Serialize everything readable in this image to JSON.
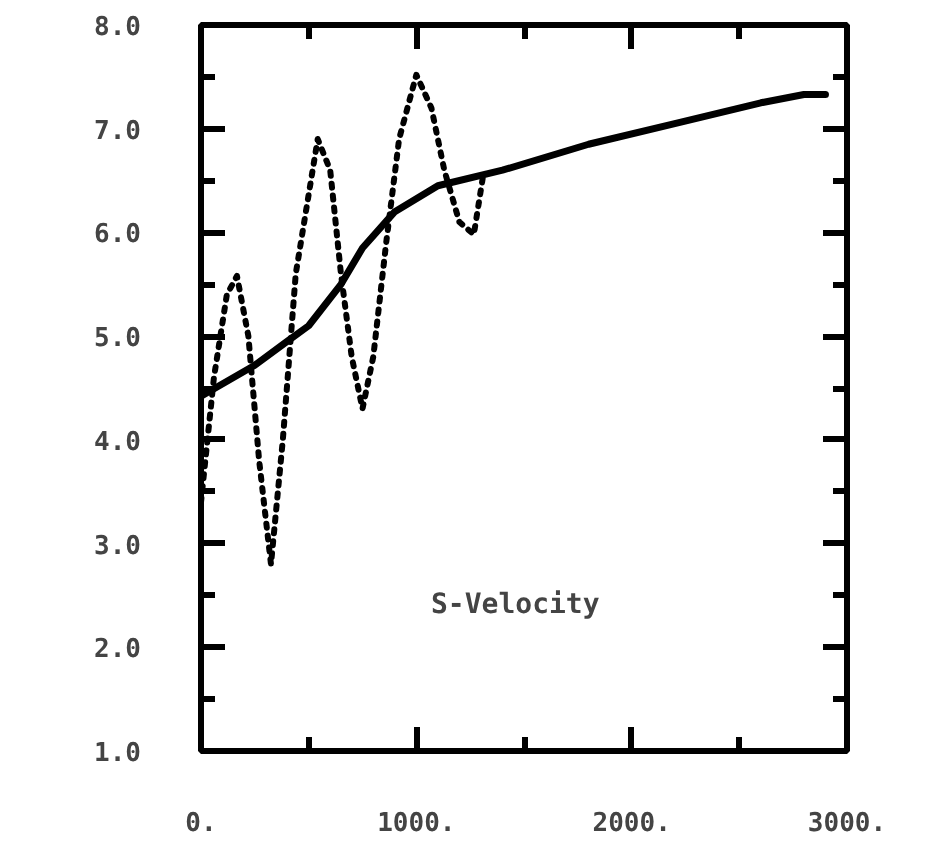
{
  "chart_data": {
    "type": "line",
    "annotations": [
      "S-Velocity"
    ],
    "xlim": [
      0,
      3000
    ],
    "ylim": [
      1,
      8
    ],
    "xticks": [
      {
        "value": 0,
        "label": "0."
      },
      {
        "value": 1000,
        "label": "1000."
      },
      {
        "value": 2000,
        "label": "2000."
      },
      {
        "value": 3000,
        "label": "3000."
      }
    ],
    "yticks": [
      {
        "value": 1,
        "label": "1.0"
      },
      {
        "value": 2,
        "label": "2.0"
      },
      {
        "value": 3,
        "label": "3.0"
      },
      {
        "value": 4,
        "label": "4.0"
      },
      {
        "value": 5,
        "label": "5.0"
      },
      {
        "value": 6,
        "label": "6.0"
      },
      {
        "value": 7,
        "label": "7.0"
      },
      {
        "value": 8,
        "label": "8.0"
      }
    ],
    "grid": false,
    "marker": "none",
    "series": [
      {
        "color": "#000000",
        "line_style": "solid",
        "x": [
          0,
          250,
          400,
          500,
          650,
          750,
          900,
          1100,
          1400,
          1800,
          2200,
          2600,
          2800,
          2900
        ],
        "values": [
          4.42,
          4.72,
          4.95,
          5.1,
          5.5,
          5.85,
          6.2,
          6.45,
          6.6,
          6.85,
          7.05,
          7.25,
          7.33,
          7.33
        ]
      },
      {
        "color": "#000000",
        "line_style": "dotted",
        "x": [
          0,
          60,
          120,
          167,
          220,
          270,
          325,
          380,
          440,
          542,
          600,
          650,
          700,
          750,
          800,
          860,
          920,
          1000,
          1070,
          1130,
          1200,
          1267,
          1308
        ],
        "values": [
          3.4,
          4.6,
          5.4,
          5.58,
          5.0,
          3.8,
          2.8,
          4.0,
          5.6,
          6.9,
          6.6,
          5.6,
          4.8,
          4.3,
          4.8,
          5.9,
          6.9,
          7.52,
          7.2,
          6.6,
          6.1,
          5.98,
          6.52
        ]
      }
    ]
  }
}
